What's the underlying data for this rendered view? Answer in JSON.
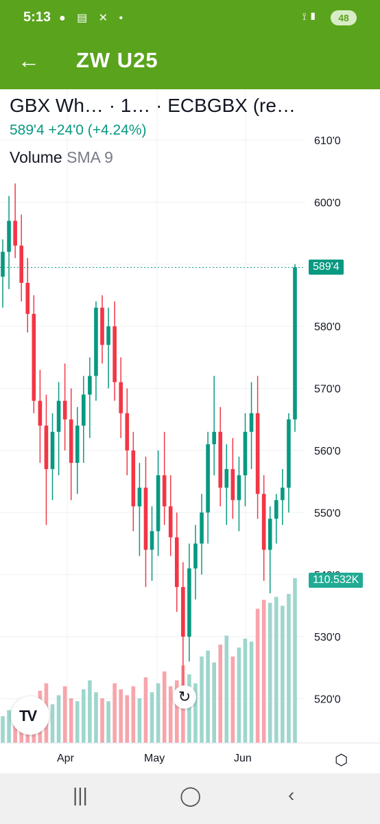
{
  "status_bar": {
    "time": "5:13",
    "notifications": "● ▤ ✕ •",
    "system_icons": "⟟ ▮",
    "battery": "48"
  },
  "app_bar": {
    "back_icon": "←",
    "title": "ZW U25"
  },
  "symbol_line": "GBX Wh…  · 1… · ECBGBX (re…",
  "price_line": "589'4 +24'0 (+4.24%)",
  "volume_label": "Volume",
  "sma_label": "SMA 9",
  "price_axis": [
    "610'0",
    "600'0",
    "590'0",
    "580'0",
    "570'0",
    "560'0",
    "550'0",
    "540'0",
    "530'0",
    "520'0"
  ],
  "last_price_label": "589'4",
  "volume_value_label": "110.532K",
  "time_axis": [
    "Apr",
    "May",
    "Jun"
  ],
  "reset_icon": "↻",
  "logo": "TV",
  "settings_icon": "⬡",
  "nav": {
    "recents": "|||",
    "home": "◯",
    "back": "‹"
  },
  "colors": {
    "up": "#089981",
    "down": "#f23645",
    "up_volume": "#9ed6cd",
    "down_volume": "#f7a5ab",
    "header": "#5aa41d"
  },
  "chart_data": {
    "type": "candlestick",
    "ylim": [
      514,
      614
    ],
    "last_price": 589.5,
    "candles": [
      [
        588,
        594,
        583,
        592
      ],
      [
        592,
        601,
        586,
        597
      ],
      [
        597,
        603,
        591,
        593
      ],
      [
        593,
        598,
        584,
        587
      ],
      [
        587,
        591,
        579,
        582
      ],
      [
        582,
        585,
        566,
        568
      ],
      [
        568,
        573,
        558,
        564
      ],
      [
        564,
        569,
        548,
        557
      ],
      [
        557,
        566,
        552,
        563
      ],
      [
        563,
        571,
        556,
        568
      ],
      [
        568,
        574,
        560,
        565
      ],
      [
        565,
        570,
        552,
        558
      ],
      [
        558,
        567,
        553,
        564
      ],
      [
        564,
        572,
        558,
        569
      ],
      [
        569,
        575,
        562,
        572
      ],
      [
        572,
        584,
        568,
        583
      ],
      [
        583,
        585,
        574,
        577
      ],
      [
        577,
        583,
        570,
        580
      ],
      [
        580,
        584,
        568,
        571
      ],
      [
        571,
        575,
        562,
        566
      ],
      [
        566,
        570,
        556,
        560
      ],
      [
        560,
        563,
        547,
        551
      ],
      [
        551,
        558,
        543,
        554
      ],
      [
        554,
        559,
        538,
        544
      ],
      [
        544,
        551,
        539,
        547
      ],
      [
        547,
        560,
        543,
        556
      ],
      [
        556,
        563,
        548,
        551
      ],
      [
        551,
        556,
        543,
        546
      ],
      [
        546,
        550,
        534,
        538
      ],
      [
        538,
        542,
        522,
        530
      ],
      [
        530,
        545,
        526,
        541
      ],
      [
        541,
        548,
        536,
        545
      ],
      [
        545,
        553,
        540,
        550
      ],
      [
        550,
        563,
        545,
        561
      ],
      [
        561,
        572,
        556,
        563
      ],
      [
        563,
        567,
        551,
        554
      ],
      [
        554,
        561,
        548,
        557
      ],
      [
        557,
        562,
        549,
        552
      ],
      [
        552,
        559,
        547,
        556
      ],
      [
        556,
        566,
        551,
        563
      ],
      [
        563,
        571,
        557,
        566
      ],
      [
        566,
        572,
        549,
        553
      ],
      [
        553,
        556,
        539,
        544
      ],
      [
        544,
        551,
        537,
        549
      ],
      [
        549,
        553,
        545,
        552
      ],
      [
        552,
        557,
        548,
        554
      ],
      [
        554,
        566,
        550,
        565
      ],
      [
        565,
        590,
        563,
        589.5
      ]
    ],
    "volume": [
      18,
      22,
      20,
      25,
      30,
      28,
      35,
      40,
      26,
      32,
      38,
      30,
      28,
      36,
      42,
      34,
      30,
      28,
      40,
      36,
      32,
      38,
      30,
      44,
      34,
      40,
      48,
      38,
      42,
      52,
      46,
      40,
      58,
      62,
      54,
      66,
      72,
      58,
      64,
      70,
      68,
      90,
      96,
      94,
      98,
      92,
      100,
      110.532
    ]
  }
}
